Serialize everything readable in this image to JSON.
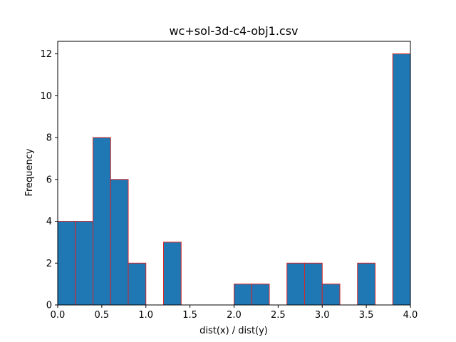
{
  "chart_data": {
    "type": "bar",
    "title": "wc+sol-3d-c4-obj1.csv",
    "xlabel": "dist(x) / dist(y)",
    "ylabel": "Frequency",
    "xlim": [
      0,
      4
    ],
    "ylim": [
      0,
      12.6
    ],
    "xticks": [
      0,
      0.5,
      1,
      1.5,
      2,
      2.5,
      3,
      3.5,
      4
    ],
    "xtick_labels": [
      "0.0",
      "0.5",
      "1.0",
      "1.5",
      "2.0",
      "2.5",
      "3.0",
      "3.5",
      "4.0"
    ],
    "yticks": [
      0,
      2,
      4,
      6,
      8,
      10,
      12
    ],
    "ytick_labels": [
      "0",
      "2",
      "4",
      "6",
      "8",
      "10",
      "12"
    ],
    "grid": false,
    "bar_fill": "#1f77b4",
    "bar_edge": "#d62728",
    "bins": [
      {
        "x0": 0.0,
        "x1": 0.2,
        "count": 4
      },
      {
        "x0": 0.2,
        "x1": 0.4,
        "count": 4
      },
      {
        "x0": 0.4,
        "x1": 0.6,
        "count": 8
      },
      {
        "x0": 0.6,
        "x1": 0.8,
        "count": 6
      },
      {
        "x0": 0.8,
        "x1": 1.0,
        "count": 2
      },
      {
        "x0": 1.0,
        "x1": 1.2,
        "count": 0
      },
      {
        "x0": 1.2,
        "x1": 1.4,
        "count": 3
      },
      {
        "x0": 1.4,
        "x1": 1.6,
        "count": 0
      },
      {
        "x0": 1.6,
        "x1": 1.8,
        "count": 0
      },
      {
        "x0": 1.8,
        "x1": 2.0,
        "count": 0
      },
      {
        "x0": 2.0,
        "x1": 2.2,
        "count": 1
      },
      {
        "x0": 2.2,
        "x1": 2.4,
        "count": 1
      },
      {
        "x0": 2.4,
        "x1": 2.6,
        "count": 0
      },
      {
        "x0": 2.6,
        "x1": 2.8,
        "count": 2
      },
      {
        "x0": 2.8,
        "x1": 3.0,
        "count": 2
      },
      {
        "x0": 3.0,
        "x1": 3.2,
        "count": 1
      },
      {
        "x0": 3.2,
        "x1": 3.4,
        "count": 0
      },
      {
        "x0": 3.4,
        "x1": 3.6,
        "count": 2
      },
      {
        "x0": 3.6,
        "x1": 3.8,
        "count": 0
      },
      {
        "x0": 3.8,
        "x1": 4.0,
        "count": 12
      }
    ]
  }
}
